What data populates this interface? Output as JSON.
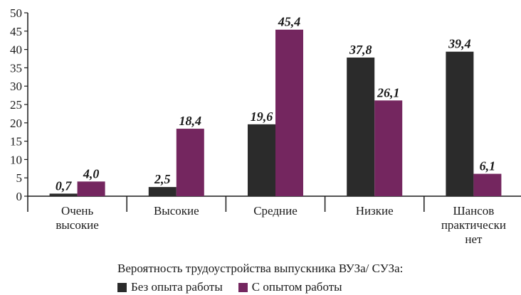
{
  "chart_data": {
    "type": "bar",
    "categories": [
      [
        "Очень",
        "высокие"
      ],
      [
        "Высокие"
      ],
      [
        "Средние"
      ],
      [
        "Низкие"
      ],
      [
        "Шансов",
        "практически",
        "нет"
      ]
    ],
    "series": [
      {
        "name": "Без опыта работы",
        "values": [
          0.7,
          2.5,
          19.6,
          37.8,
          39.4
        ],
        "labels": [
          "0,7",
          "2,5",
          "19,6",
          "37,8",
          "39,4"
        ],
        "color": "#2b2b2b"
      },
      {
        "name": "С опытом работы",
        "values": [
          4.0,
          18.4,
          45.4,
          26.1,
          6.1
        ],
        "labels": [
          "4,0",
          "18,4",
          "45,4",
          "26,1",
          "6,1"
        ],
        "color": "#74265f"
      }
    ],
    "yticks": [
      "0",
      "5",
      "10",
      "15",
      "20",
      "25",
      "30",
      "35",
      "40",
      "45",
      "50"
    ],
    "ylim": [
      0,
      50
    ],
    "legend_title": "Вероятность трудоустройства выпускника ВУЗа/ СУЗа:",
    "legend_placement": "bottom",
    "grid": false
  }
}
